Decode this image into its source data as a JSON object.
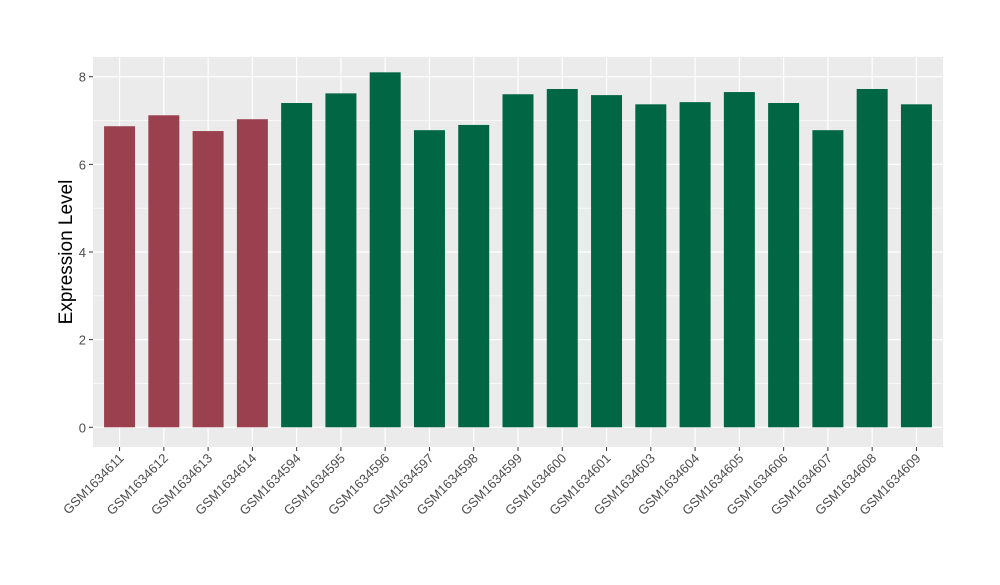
{
  "chart_data": {
    "type": "bar",
    "ylabel": "Expression Level",
    "xlabel": "",
    "ylim": [
      -0.45,
      8.45
    ],
    "y_ticks": [
      0,
      2,
      4,
      6,
      8
    ],
    "y_tick_labels": [
      "0",
      "2",
      "4",
      "6",
      "8"
    ],
    "grid": true,
    "panel_background": "#ebebeb",
    "categories": [
      "GSM1634611",
      "GSM1634612",
      "GSM1634613",
      "GSM1634614",
      "GSM1634594",
      "GSM1634595",
      "GSM1634596",
      "GSM1634597",
      "GSM1634598",
      "GSM1634599",
      "GSM1634600",
      "GSM1634601",
      "GSM1634603",
      "GSM1634604",
      "GSM1634605",
      "GSM1634606",
      "GSM1634607",
      "GSM1634608",
      "GSM1634609"
    ],
    "values": [
      6.87,
      7.12,
      6.76,
      7.03,
      7.4,
      7.62,
      8.1,
      6.78,
      6.9,
      7.6,
      7.72,
      7.58,
      7.37,
      7.42,
      7.65,
      7.4,
      6.78,
      7.72,
      7.37
    ],
    "group_colors": [
      "#9b404f",
      "#9b404f",
      "#9b404f",
      "#9b404f",
      "#006644",
      "#006644",
      "#006644",
      "#006644",
      "#006644",
      "#006644",
      "#006644",
      "#006644",
      "#006644",
      "#006644",
      "#006644",
      "#006644",
      "#006644",
      "#006644",
      "#006644"
    ]
  }
}
